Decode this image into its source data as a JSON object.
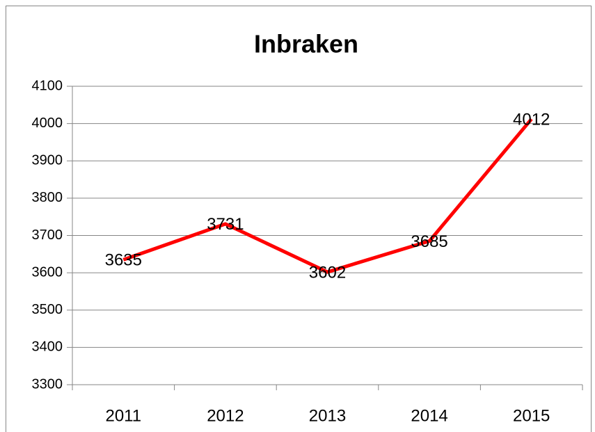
{
  "chart_data": {
    "type": "line",
    "title": "Inbraken",
    "categories": [
      "2011",
      "2012",
      "2013",
      "2014",
      "2015"
    ],
    "values": [
      3635,
      3731,
      3602,
      3685,
      4012
    ],
    "color": "#ff0000",
    "ylim": [
      3300,
      4100
    ],
    "yticks": [
      3300,
      3400,
      3500,
      3600,
      3700,
      3800,
      3900,
      4000,
      4100
    ],
    "grid": true
  }
}
